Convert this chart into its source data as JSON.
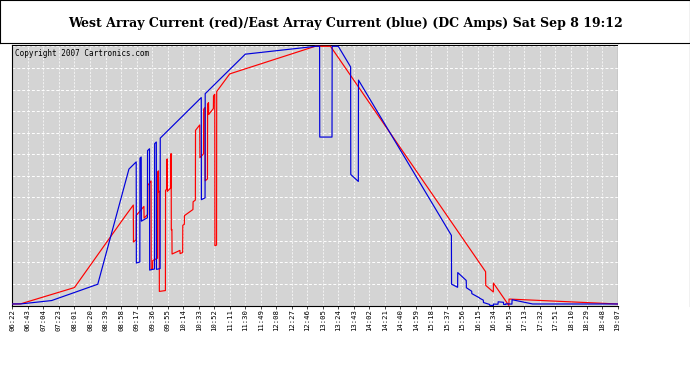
{
  "title": "West Array Current (red)/East Array Current (blue) (DC Amps) Sat Sep 8 19:12",
  "copyright": "Copyright 2007 Cartronics.com",
  "yticks": [
    0.0,
    0.66,
    1.32,
    1.97,
    2.63,
    3.29,
    3.94,
    4.6,
    5.26,
    5.92,
    6.57,
    7.23,
    7.89
  ],
  "ylim": [
    0.0,
    7.89
  ],
  "x_labels": [
    "06:22",
    "06:43",
    "07:04",
    "07:23",
    "08:01",
    "08:20",
    "08:39",
    "08:58",
    "09:17",
    "09:36",
    "09:55",
    "10:14",
    "10:33",
    "10:52",
    "11:11",
    "11:30",
    "11:49",
    "12:08",
    "12:27",
    "12:46",
    "13:05",
    "13:24",
    "13:43",
    "14:02",
    "14:21",
    "14:40",
    "14:59",
    "15:18",
    "15:37",
    "15:56",
    "16:15",
    "16:34",
    "16:53",
    "17:13",
    "17:32",
    "17:51",
    "18:10",
    "18:29",
    "18:48",
    "19:07"
  ],
  "bg_color": "#d4d4d4",
  "west_color": "#ff0000",
  "east_color": "#0000dd",
  "title_bg": "#ffffff",
  "grid_color": "#ffffff"
}
